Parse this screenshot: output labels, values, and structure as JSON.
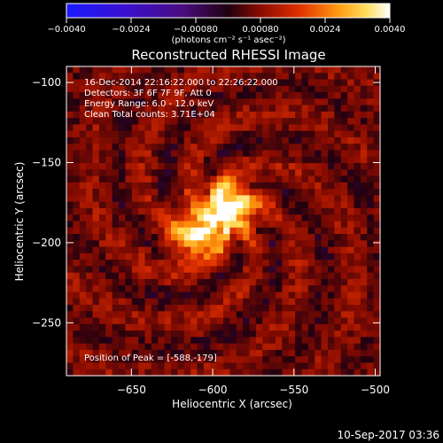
{
  "chart_data": {
    "type": "heatmap",
    "title": "Reconstructed RHESSI Image",
    "xlabel": "Heliocentric X (arcsec)",
    "ylabel": "Heliocentric Y (arcsec)",
    "xlim": [
      -690,
      -497
    ],
    "ylim": [
      -283,
      -90
    ],
    "xticks": [
      -650,
      -600,
      -550,
      -500
    ],
    "yticks": [
      -100,
      -150,
      -200,
      -250
    ],
    "x_tick_labels": [
      "−650",
      "−600",
      "−550",
      "−500"
    ],
    "y_tick_labels": [
      "−100",
      "−150",
      "−200",
      "−250"
    ],
    "colorbar": {
      "ticks": [
        -0.004,
        -0.0024,
        -0.0008,
        0.0008,
        0.0024,
        0.004
      ],
      "tick_labels": [
        "−0.0040",
        "−0.0024",
        "−0.00080",
        "0.00080",
        "0.0024",
        "0.0040"
      ],
      "units": "(photons cm⁻² s⁻¹ asec⁻²)",
      "colormap": "hot (blue-black-red-yellow-white)"
    },
    "annotations": {
      "time_range": "16-Dec-2014 22:16:22.000 to 22:26:22.000",
      "detectors": "Detectors: 3F 6F 7F 9F, Att 0",
      "energy": "Energy Range: 6.0 - 12.0 keV",
      "clean": "Clean    Total counts: 3.71E+04",
      "peak": "Position of Peak = [-588,-179]"
    },
    "peak_position": [
      -588,
      -179
    ],
    "sources": [
      {
        "x": -590,
        "y": -178,
        "peak": 0.004
      },
      {
        "x": -610,
        "y": -196,
        "peak": 0.003
      }
    ]
  },
  "footer": {
    "timestamp": "10-Sep-2017 03:36"
  }
}
